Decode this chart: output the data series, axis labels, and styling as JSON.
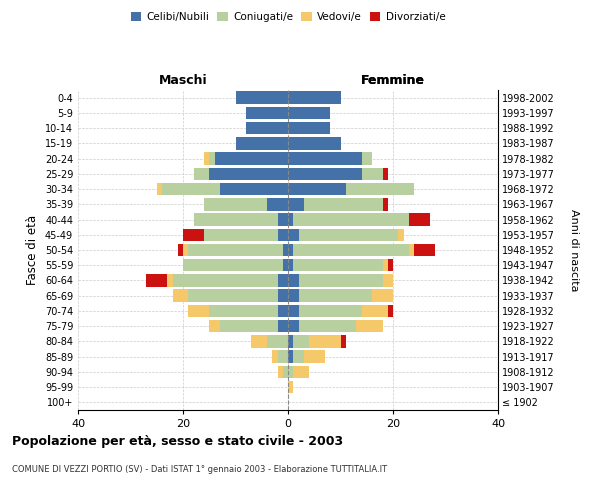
{
  "age_groups": [
    "100+",
    "95-99",
    "90-94",
    "85-89",
    "80-84",
    "75-79",
    "70-74",
    "65-69",
    "60-64",
    "55-59",
    "50-54",
    "45-49",
    "40-44",
    "35-39",
    "30-34",
    "25-29",
    "20-24",
    "15-19",
    "10-14",
    "5-9",
    "0-4"
  ],
  "birth_years": [
    "≤ 1902",
    "1903-1907",
    "1908-1912",
    "1913-1917",
    "1918-1922",
    "1923-1927",
    "1928-1932",
    "1933-1937",
    "1938-1942",
    "1943-1947",
    "1948-1952",
    "1953-1957",
    "1958-1962",
    "1963-1967",
    "1968-1972",
    "1973-1977",
    "1978-1982",
    "1983-1987",
    "1988-1992",
    "1993-1997",
    "1998-2002"
  ],
  "male_celibi": [
    0,
    0,
    0,
    0,
    0,
    2,
    2,
    2,
    2,
    1,
    1,
    2,
    2,
    4,
    13,
    15,
    14,
    10,
    8,
    8,
    10
  ],
  "male_coniugati": [
    0,
    0,
    1,
    2,
    4,
    11,
    13,
    17,
    20,
    19,
    18,
    14,
    16,
    12,
    11,
    3,
    1,
    0,
    0,
    0,
    0
  ],
  "male_vedovi": [
    0,
    0,
    1,
    1,
    3,
    2,
    4,
    3,
    1,
    0,
    1,
    0,
    0,
    0,
    1,
    0,
    1,
    0,
    0,
    0,
    0
  ],
  "male_divorziati": [
    0,
    0,
    0,
    0,
    0,
    0,
    0,
    0,
    4,
    0,
    1,
    4,
    0,
    0,
    0,
    0,
    0,
    0,
    0,
    0,
    0
  ],
  "female_celibi": [
    0,
    0,
    0,
    1,
    1,
    2,
    2,
    2,
    2,
    1,
    1,
    2,
    1,
    3,
    11,
    14,
    14,
    10,
    8,
    8,
    10
  ],
  "female_coniugati": [
    0,
    0,
    1,
    2,
    3,
    11,
    12,
    14,
    16,
    17,
    22,
    19,
    22,
    15,
    13,
    4,
    2,
    0,
    0,
    0,
    0
  ],
  "female_vedovi": [
    0,
    1,
    3,
    4,
    6,
    5,
    5,
    4,
    2,
    1,
    1,
    1,
    0,
    0,
    0,
    0,
    0,
    0,
    0,
    0,
    0
  ],
  "female_divorziati": [
    0,
    0,
    0,
    0,
    1,
    0,
    1,
    0,
    0,
    1,
    4,
    0,
    4,
    1,
    0,
    1,
    0,
    0,
    0,
    0,
    0
  ],
  "color_celibi": "#4472a8",
  "color_coniugati": "#b8cfa0",
  "color_vedovi": "#f5c96a",
  "color_divorziati": "#cc1111",
  "xlim": 40,
  "title": "Popolazione per età, sesso e stato civile - 2003",
  "subtitle": "COMUNE DI VEZZI PORTIO (SV) - Dati ISTAT 1° gennaio 2003 - Elaborazione TUTTITALIA.IT",
  "ylabel": "Fasce di età",
  "ylabel_right": "Anni di nascita",
  "label_maschi": "Maschi",
  "label_femmine": "Femmine",
  "legend_celibi": "Celibi/Nubili",
  "legend_coniugati": "Coniugati/e",
  "legend_vedovi": "Vedovi/e",
  "legend_divorziati": "Divorziati/e"
}
